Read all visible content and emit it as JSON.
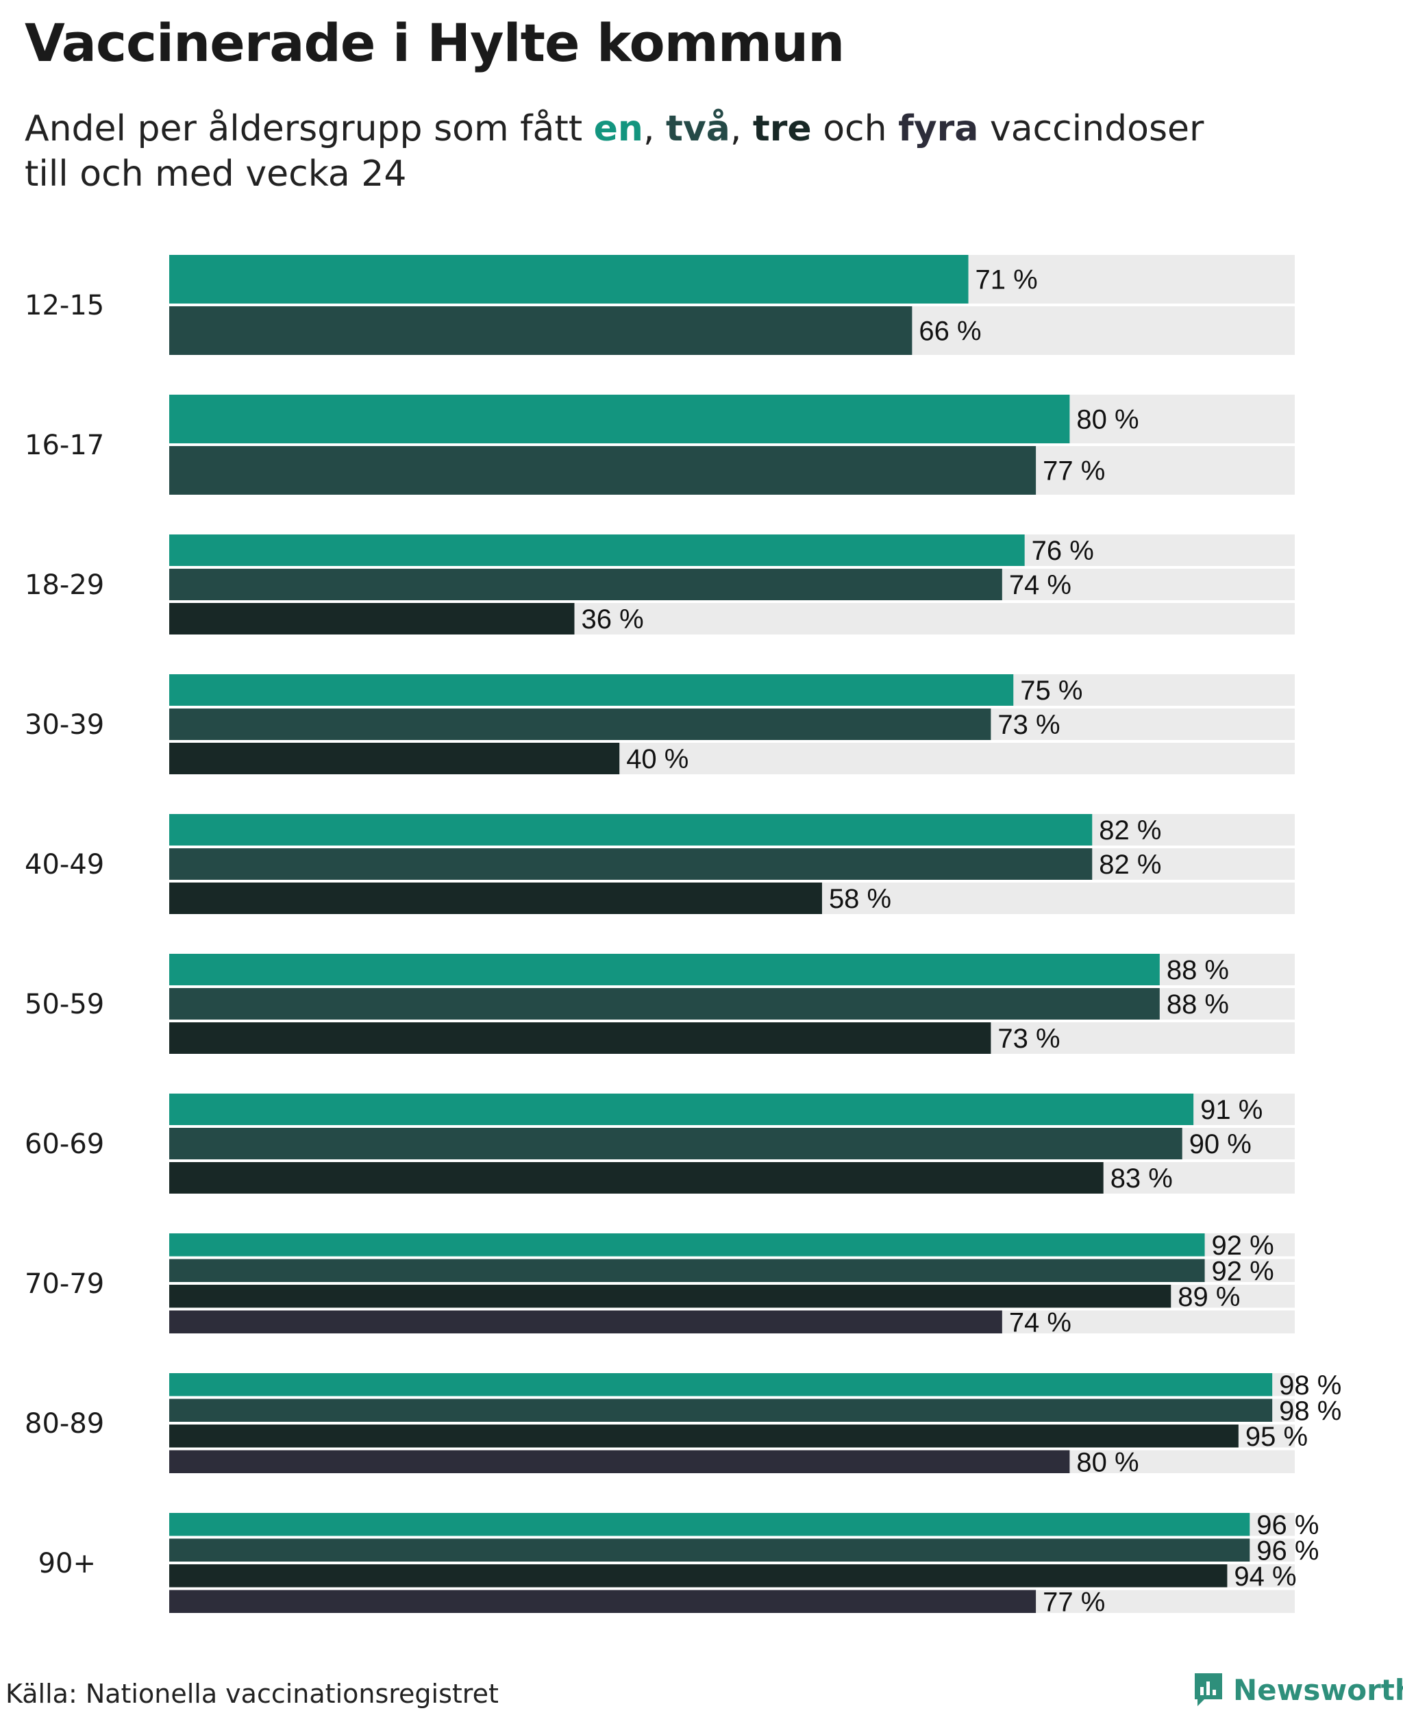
{
  "title": "Vaccinerade i Hylte kommun",
  "subtitle": {
    "prefix": "Andel per åldersgrupp som fått ",
    "k1": "en",
    "sep1": ", ",
    "k2": "två",
    "sep2": ", ",
    "k3": "tre",
    "mid": " och ",
    "k4": "fyra",
    "suffix": " vaccindoser",
    "line2": "till och med vecka 24"
  },
  "colors": {
    "dose1": "#13957f",
    "dose2": "#254a47",
    "dose3": "#182826",
    "dose4": "#2d2d3a",
    "track": "#ebebeb"
  },
  "footer": {
    "source": "Källa: Nationella vaccinationsregistret",
    "brand": "Newsworthy"
  },
  "chart_data": {
    "type": "bar",
    "orientation": "horizontal",
    "title": "Vaccinerade i Hylte kommun",
    "xlim": [
      0,
      100
    ],
    "unit": "%",
    "categories": [
      "12-15",
      "16-17",
      "18-29",
      "30-39",
      "40-49",
      "50-59",
      "60-69",
      "70-79",
      "80-89",
      "90+"
    ],
    "series": [
      {
        "name": "en",
        "values": [
          71,
          80,
          76,
          75,
          82,
          88,
          91,
          92,
          98,
          96
        ]
      },
      {
        "name": "två",
        "values": [
          66,
          77,
          74,
          73,
          82,
          88,
          90,
          92,
          98,
          96
        ]
      },
      {
        "name": "tre",
        "values": [
          null,
          null,
          36,
          40,
          58,
          73,
          83,
          89,
          95,
          94
        ]
      },
      {
        "name": "fyra",
        "values": [
          null,
          null,
          null,
          null,
          null,
          null,
          null,
          74,
          80,
          77
        ]
      }
    ]
  }
}
